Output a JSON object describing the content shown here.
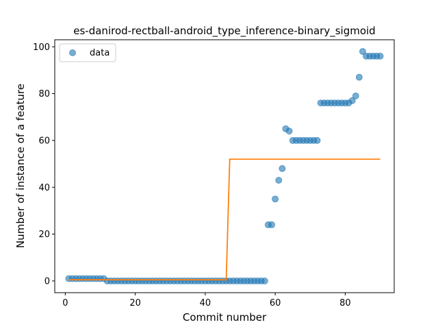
{
  "chart_data": {
    "type": "scatter",
    "title": "es-danirod-rectball-android_type_inference-binary_sigmoid",
    "xlabel": "Commit number",
    "ylabel": "Number of instance of a feature",
    "xlim": [
      -3,
      94
    ],
    "ylim": [
      -5,
      103
    ],
    "xticks": [
      0,
      20,
      40,
      60,
      80
    ],
    "yticks": [
      0,
      20,
      40,
      60,
      80,
      100
    ],
    "legend": {
      "position": "top-left",
      "entries": [
        "data"
      ]
    },
    "colors": {
      "data": "#1f77b4",
      "fit": "#ff7f0e"
    },
    "series": [
      {
        "name": "data",
        "kind": "scatter",
        "x": [
          1,
          2,
          3,
          4,
          5,
          6,
          7,
          8,
          9,
          10,
          11,
          12,
          13,
          14,
          15,
          16,
          17,
          18,
          19,
          20,
          21,
          22,
          23,
          24,
          25,
          26,
          27,
          28,
          29,
          30,
          31,
          32,
          33,
          34,
          35,
          36,
          37,
          38,
          39,
          40,
          41,
          42,
          43,
          44,
          45,
          46,
          47,
          48,
          49,
          50,
          51,
          52,
          53,
          54,
          55,
          56,
          57,
          58,
          59,
          60,
          61,
          62,
          63,
          64,
          65,
          66,
          67,
          68,
          69,
          70,
          71,
          72,
          73,
          74,
          75,
          76,
          77,
          78,
          79,
          80,
          81,
          82,
          83,
          84,
          85,
          86,
          87,
          88,
          89,
          90
        ],
        "y": [
          1,
          1,
          1,
          1,
          1,
          1,
          1,
          1,
          1,
          1,
          1,
          0,
          0,
          0,
          0,
          0,
          0,
          0,
          0,
          0,
          0,
          0,
          0,
          0,
          0,
          0,
          0,
          0,
          0,
          0,
          0,
          0,
          0,
          0,
          0,
          0,
          0,
          0,
          0,
          0,
          0,
          0,
          0,
          0,
          0,
          0,
          0,
          0,
          0,
          0,
          0,
          0,
          0,
          0,
          0,
          0,
          0,
          24,
          24,
          35,
          43,
          48,
          65,
          64,
          60,
          60,
          60,
          60,
          60,
          60,
          60,
          60,
          76,
          76,
          76,
          76,
          76,
          76,
          76,
          76,
          76,
          77,
          79,
          87,
          98,
          96,
          96,
          96,
          96,
          96
        ]
      },
      {
        "kind": "line",
        "x": [
          1,
          46,
          47,
          90
        ],
        "y": [
          0.5,
          0.5,
          52,
          52
        ]
      }
    ]
  }
}
